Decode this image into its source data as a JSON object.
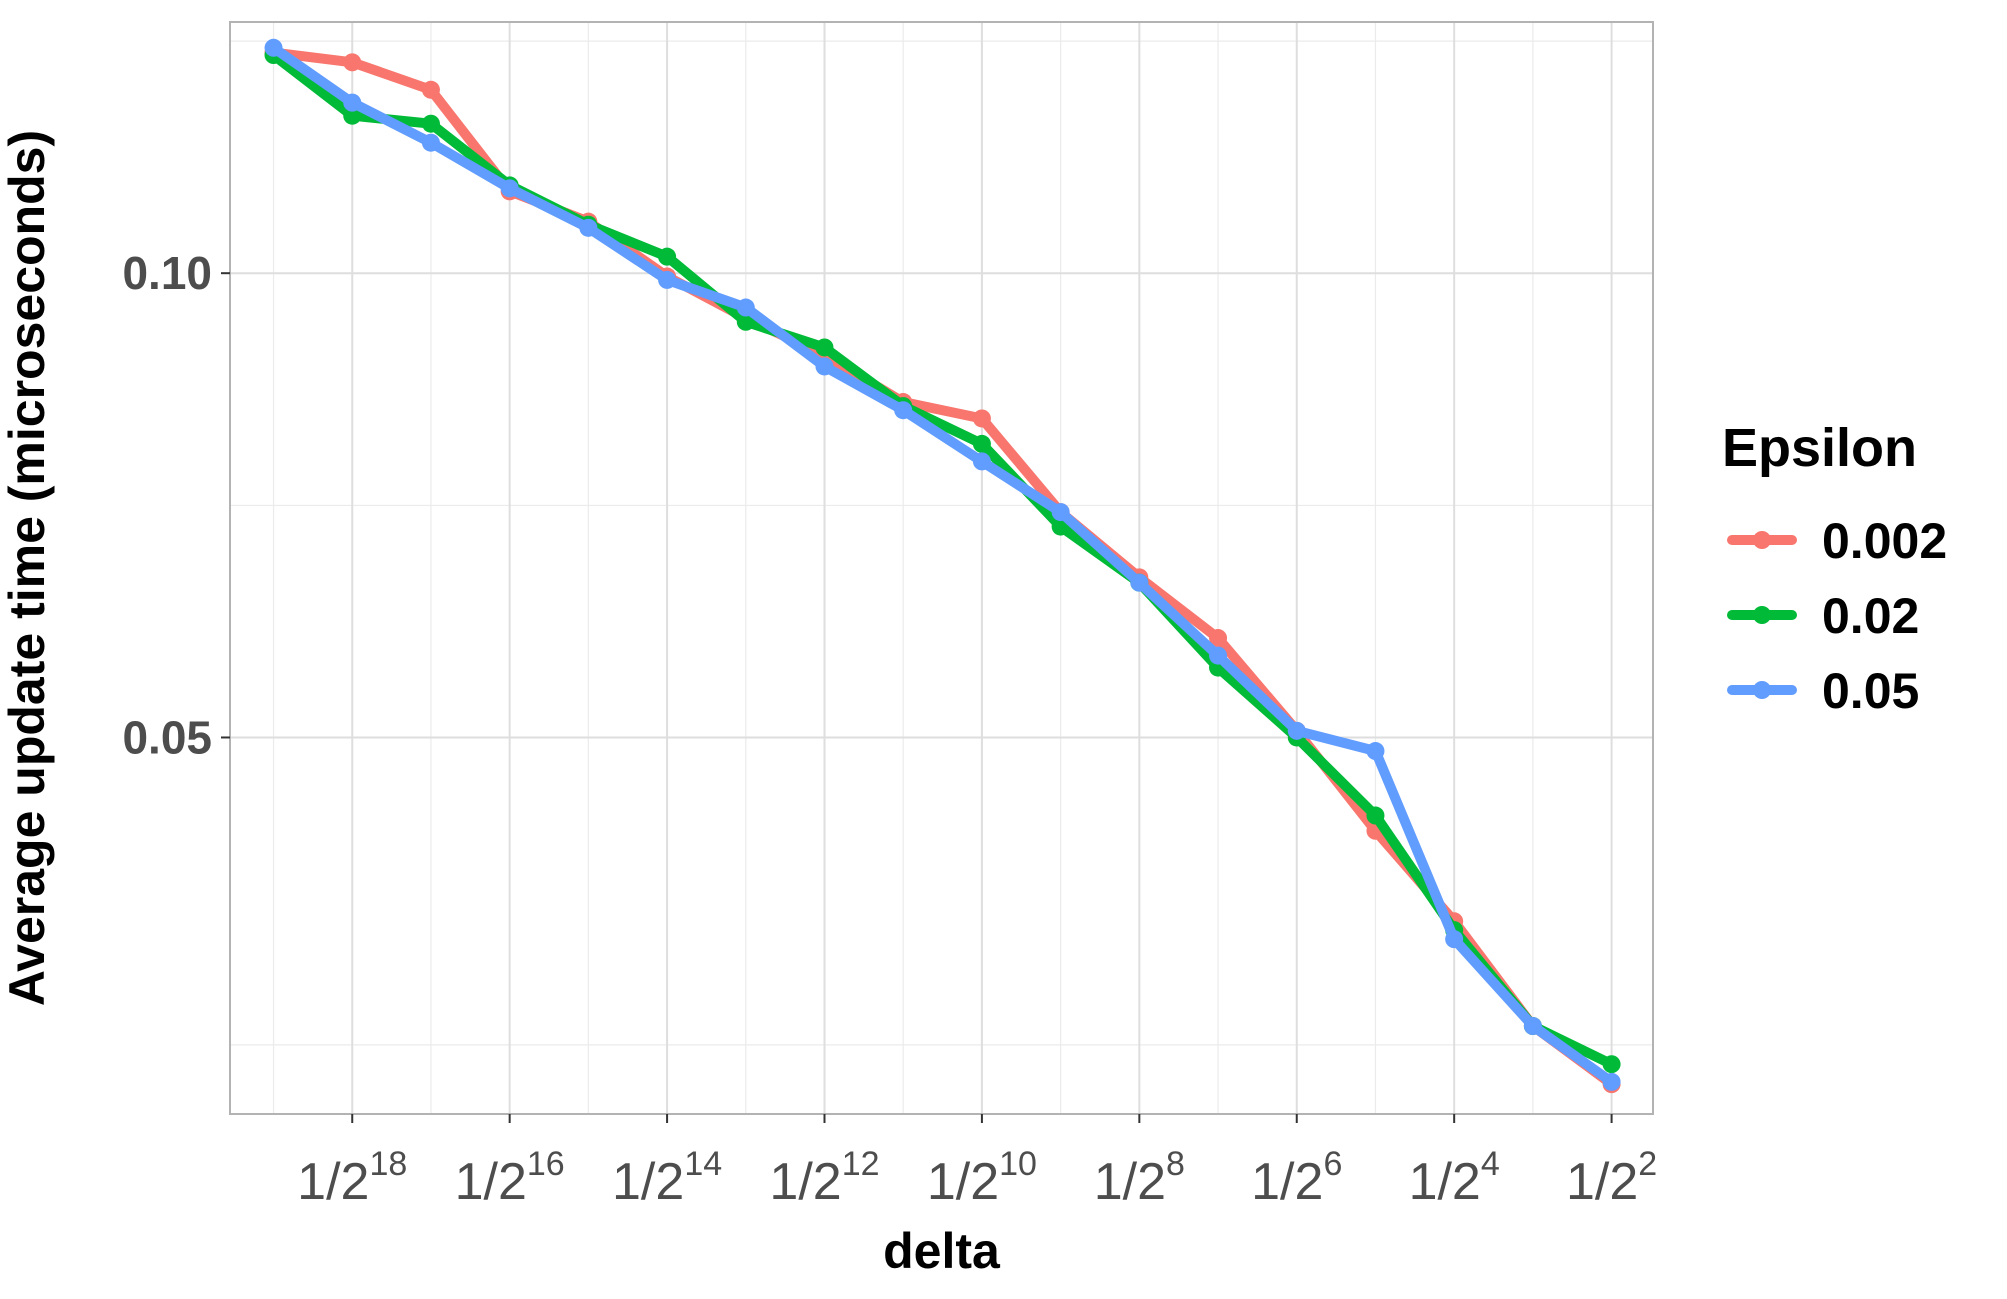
{
  "chart_data": {
    "type": "line",
    "xlabel": "delta",
    "ylabel": "Average update time (microseconds)",
    "x_scale": "log2",
    "y_scale": "log10",
    "x": [
      1.9073486328125e-06,
      3.814697265625e-06,
      7.62939453125e-06,
      1.52587890625e-05,
      3.0517578125e-05,
      6.103515625e-05,
      0.0001220703125,
      0.000244140625,
      0.00048828125,
      0.0009765625,
      0.001953125,
      0.00390625,
      0.0078125,
      0.015625,
      0.03125,
      0.0625,
      0.125,
      0.25
    ],
    "xlim": [
      1.3e-06,
      0.36
    ],
    "x_ticks": [
      {
        "value": 3.814697265625e-06,
        "base": "1/2",
        "exp": "18"
      },
      {
        "value": 1.52587890625e-05,
        "base": "1/2",
        "exp": "16"
      },
      {
        "value": 6.103515625e-05,
        "base": "1/2",
        "exp": "14"
      },
      {
        "value": 0.000244140625,
        "base": "1/2",
        "exp": "12"
      },
      {
        "value": 0.0009765625,
        "base": "1/2",
        "exp": "10"
      },
      {
        "value": 0.00390625,
        "base": "1/2",
        "exp": "8"
      },
      {
        "value": 0.015625,
        "base": "1/2",
        "exp": "6"
      },
      {
        "value": 0.0625,
        "base": "1/2",
        "exp": "4"
      },
      {
        "value": 0.25,
        "base": "1/2",
        "exp": "2"
      }
    ],
    "x_minor_grid": [
      1.9073486328125e-06,
      7.62939453125e-06,
      3.0517578125e-05,
      0.0001220703125,
      0.00048828125,
      0.001953125,
      0.0078125,
      0.03125,
      0.125
    ],
    "ylim": [
      0.0285,
      0.1455
    ],
    "y_ticks": [
      {
        "value": 0.1,
        "label": "0.10"
      },
      {
        "value": 0.05,
        "label": "0.05"
      }
    ],
    "y_minor_grid": [
      0.0316,
      0.0707,
      0.1414
    ],
    "grid": true,
    "legend": {
      "title": "Epsilon",
      "position": "right"
    },
    "series": [
      {
        "name": "0.002",
        "color": "#F8766D",
        "values": [
          0.139,
          0.137,
          0.1315,
          0.113,
          0.108,
          0.0995,
          0.0935,
          0.0885,
          0.0825,
          0.0805,
          0.07,
          0.0635,
          0.058,
          0.0505,
          0.0435,
          0.038,
          0.0325,
          0.0298
        ]
      },
      {
        "name": "0.02",
        "color": "#00BA38",
        "values": [
          0.1385,
          0.1265,
          0.125,
          0.114,
          0.1075,
          0.1025,
          0.093,
          0.0895,
          0.082,
          0.0775,
          0.0685,
          0.063,
          0.0555,
          0.05,
          0.0445,
          0.0375,
          0.0325,
          0.0307
        ]
      },
      {
        "name": "0.05",
        "color": "#619CFF",
        "values": [
          0.14,
          0.129,
          0.1215,
          0.1135,
          0.107,
          0.099,
          0.095,
          0.087,
          0.0815,
          0.0755,
          0.07,
          0.063,
          0.0565,
          0.0505,
          0.049,
          0.037,
          0.0325,
          0.0299
        ]
      }
    ]
  }
}
